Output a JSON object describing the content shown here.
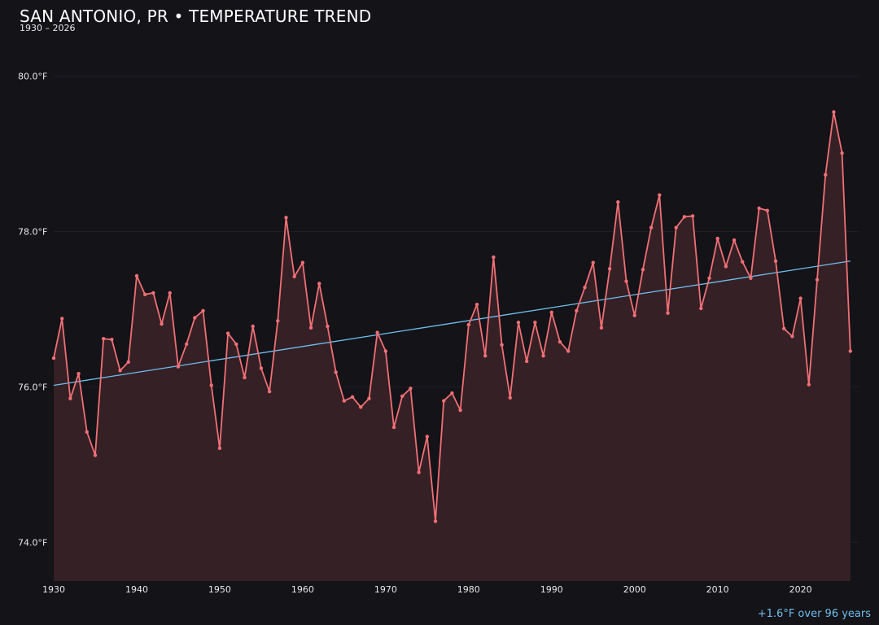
{
  "header": {
    "title": "SAN ANTONIO, PR • TEMPERATURE TREND",
    "subtitle": "1930 – 2026"
  },
  "footer": {
    "note": "+1.6°F over 96 years"
  },
  "colors": {
    "background": "#131318",
    "series_line": "#f07075",
    "series_fill": "#352026",
    "trend_line": "#6fbfee",
    "grid": "#1e1e25",
    "note": "#6fbfee"
  },
  "chart_data": {
    "type": "line",
    "title": "SAN ANTONIO, PR • TEMPERATURE TREND",
    "subtitle": "1930 – 2026",
    "xlabel": "",
    "ylabel": "",
    "xlim": [
      1930,
      2027
    ],
    "ylim": [
      73.5,
      80.3
    ],
    "x_ticks": [
      1930,
      1940,
      1950,
      1960,
      1970,
      1980,
      1990,
      2000,
      2010,
      2020
    ],
    "y_ticks": [
      74.0,
      76.0,
      78.0,
      80.0
    ],
    "y_tick_labels": [
      "74.0°F",
      "76.0°F",
      "78.0°F",
      "80.0°F"
    ],
    "grid": true,
    "legend": "none",
    "x": [
      1930,
      1931,
      1932,
      1933,
      1934,
      1935,
      1936,
      1937,
      1938,
      1939,
      1940,
      1941,
      1942,
      1943,
      1944,
      1945,
      1946,
      1947,
      1948,
      1949,
      1950,
      1951,
      1952,
      1953,
      1954,
      1955,
      1956,
      1957,
      1958,
      1959,
      1960,
      1961,
      1962,
      1963,
      1964,
      1965,
      1966,
      1967,
      1968,
      1969,
      1970,
      1971,
      1972,
      1973,
      1974,
      1975,
      1976,
      1977,
      1978,
      1979,
      1980,
      1981,
      1982,
      1983,
      1984,
      1985,
      1986,
      1987,
      1988,
      1989,
      1990,
      1991,
      1992,
      1993,
      1994,
      1995,
      1996,
      1997,
      1998,
      1999,
      2000,
      2001,
      2002,
      2003,
      2004,
      2005,
      2006,
      2007,
      2008,
      2009,
      2010,
      2011,
      2012,
      2013,
      2014,
      2015,
      2016,
      2017,
      2018,
      2019,
      2020,
      2021,
      2022,
      2023,
      2024,
      2025,
      2026
    ],
    "series": [
      {
        "values": [
          76.37,
          76.88,
          75.85,
          76.17,
          75.42,
          75.12,
          76.62,
          76.61,
          76.21,
          76.32,
          77.43,
          77.19,
          77.21,
          76.81,
          77.21,
          76.26,
          76.55,
          76.89,
          76.98,
          76.02,
          75.21,
          76.69,
          76.55,
          76.12,
          76.78,
          76.24,
          75.94,
          76.85,
          78.18,
          77.42,
          77.6,
          76.76,
          77.33,
          76.78,
          76.19,
          75.82,
          75.87,
          75.74,
          75.85,
          76.7,
          76.46,
          75.48,
          75.88,
          75.98,
          74.9,
          75.36,
          74.27,
          75.82,
          75.92,
          75.7,
          76.8,
          77.06,
          76.4,
          77.67,
          76.54,
          75.86,
          76.83,
          76.33,
          76.83,
          76.4,
          76.96,
          76.58,
          76.46,
          76.98,
          77.28,
          77.6,
          76.76,
          77.52,
          78.38,
          77.36,
          76.92,
          77.51,
          78.05,
          78.47,
          76.95,
          78.05,
          78.19,
          78.2,
          77.01,
          77.4,
          77.91,
          77.55,
          77.89,
          77.61,
          77.4,
          78.3,
          78.27,
          77.62,
          76.75,
          76.65,
          77.14,
          76.03,
          77.38,
          78.73,
          79.54,
          79.01,
          76.46
        ]
      }
    ],
    "trendline": {
      "x": [
        1930,
        2026
      ],
      "y": [
        76.02,
        77.62
      ]
    },
    "annotation": "+1.6°F over 96 years"
  }
}
